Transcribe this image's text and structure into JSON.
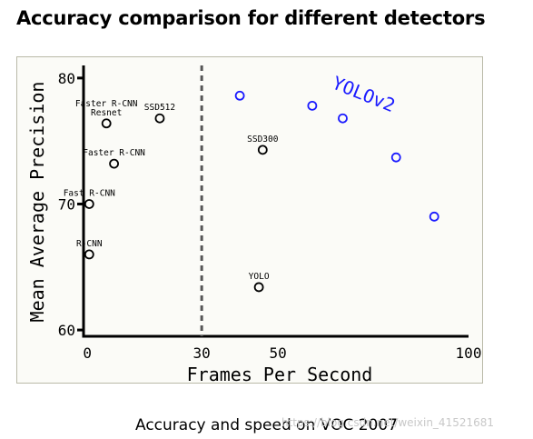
{
  "title": "Accuracy comparison for different detectors",
  "caption": "Accuracy and speed on VOC 2007",
  "watermark": "https://blog.csdn.net/weixin_41521681",
  "chart_data": {
    "type": "scatter",
    "xlabel": "Frames Per Second",
    "ylabel": "Mean Average Precision",
    "x_ticks": [
      0,
      30,
      50,
      100
    ],
    "y_ticks": [
      60,
      70,
      80
    ],
    "xlim": [
      -1,
      100
    ],
    "ylim": [
      59.5,
      81
    ],
    "realtime_line_x": 30,
    "colors": {
      "others": "#000000",
      "yolov2": "#1a1aff",
      "divider": "#555555"
    },
    "points": [
      {
        "label": "R-CNN",
        "x": 0.5,
        "y": 66.0,
        "color": "black"
      },
      {
        "label": "Fast R-CNN",
        "x": 0.5,
        "y": 70.0,
        "color": "black"
      },
      {
        "label": "Faster R-CNN",
        "x": 7,
        "y": 73.2,
        "color": "black"
      },
      {
        "label": "Faster R-CNN\nResnet",
        "x": 5,
        "y": 76.4,
        "color": "black"
      },
      {
        "label": "SSD512",
        "x": 19,
        "y": 76.8,
        "color": "black"
      },
      {
        "label": "SSD300",
        "x": 46,
        "y": 74.3,
        "color": "black"
      },
      {
        "label": "YOLO",
        "x": 45,
        "y": 63.4,
        "color": "black"
      },
      {
        "label": "",
        "x": 40,
        "y": 78.6,
        "color": "blue"
      },
      {
        "label": "",
        "x": 59,
        "y": 77.8,
        "color": "blue"
      },
      {
        "label": "",
        "x": 67,
        "y": 76.8,
        "color": "blue"
      },
      {
        "label": "",
        "x": 81,
        "y": 73.7,
        "color": "blue"
      },
      {
        "label": "",
        "x": 91,
        "y": 69.0,
        "color": "blue"
      }
    ],
    "series_annotation": "YOLOv2"
  }
}
